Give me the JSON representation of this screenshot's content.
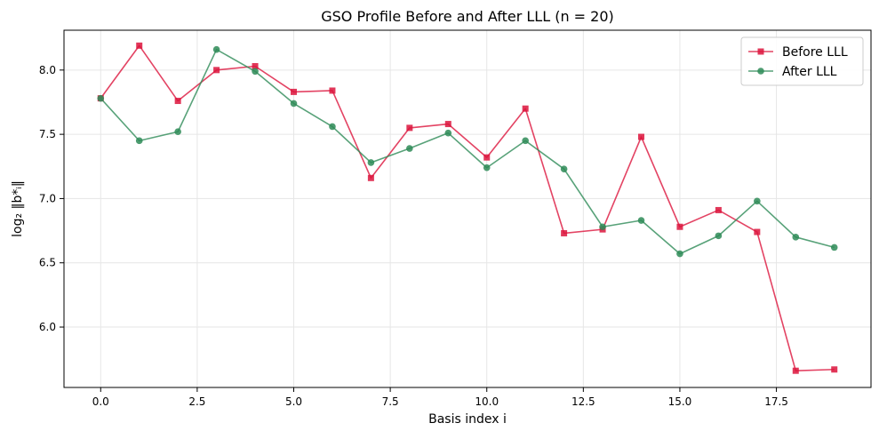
{
  "chart_data": {
    "type": "line",
    "title": "GSO Profile Before and After LLL (n = 20)",
    "xlabel": "Basis index i",
    "ylabel": "log₂ ‖b*ᵢ‖",
    "xlim": [
      -0.95,
      19.95
    ],
    "ylim": [
      5.53,
      8.31
    ],
    "xticks": [
      0.0,
      2.5,
      5.0,
      7.5,
      10.0,
      12.5,
      15.0,
      17.5
    ],
    "xtick_labels": [
      "0.0",
      "2.5",
      "5.0",
      "7.5",
      "10.0",
      "12.5",
      "15.0",
      "17.5"
    ],
    "yticks": [
      6.0,
      6.5,
      7.0,
      7.5,
      8.0
    ],
    "ytick_labels": [
      "6.0",
      "6.5",
      "7.0",
      "7.5",
      "8.0"
    ],
    "grid": true,
    "legend_position": "top-right",
    "x": [
      0,
      1,
      2,
      3,
      4,
      5,
      6,
      7,
      8,
      9,
      10,
      11,
      12,
      13,
      14,
      15,
      16,
      17,
      18,
      19
    ],
    "series": [
      {
        "name": "Before LLL",
        "color": "#dc143c",
        "marker": "square",
        "values": [
          7.78,
          8.19,
          7.76,
          8.0,
          8.03,
          7.83,
          7.84,
          7.16,
          7.55,
          7.58,
          7.32,
          7.7,
          6.73,
          6.76,
          7.48,
          6.78,
          6.91,
          6.74,
          5.66,
          5.67
        ]
      },
      {
        "name": "After LLL",
        "color": "#2e8b57",
        "marker": "circle",
        "values": [
          7.78,
          7.45,
          7.52,
          8.16,
          7.99,
          7.74,
          7.56,
          7.28,
          7.39,
          7.51,
          7.24,
          7.45,
          7.23,
          6.78,
          6.83,
          6.57,
          6.71,
          6.98,
          6.7,
          6.62
        ]
      }
    ]
  }
}
